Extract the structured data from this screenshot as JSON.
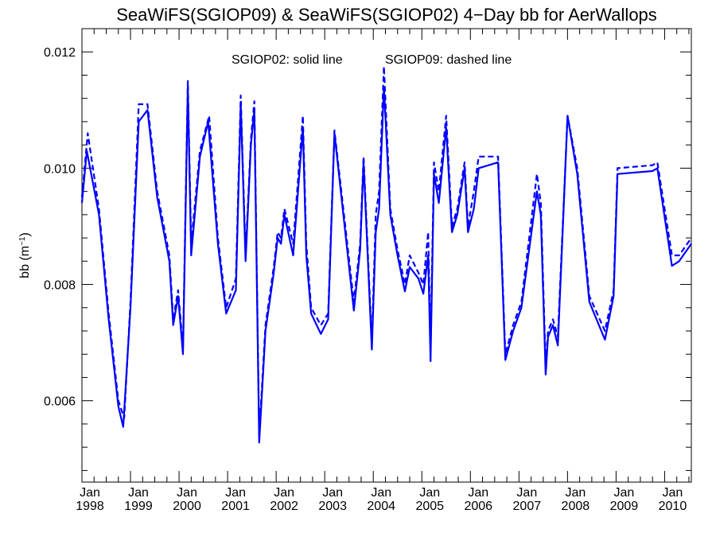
{
  "chart_data": {
    "type": "line",
    "title": "SeaWiFS(SGIOP09) & SeaWiFS(SGIOP02) 4−Day bb for AerWallops",
    "annotations": [
      "SGIOP02: solid line",
      "SGIOP09: dashed line"
    ],
    "ylabel": "bb (m",
    "ylabel_sup": "−1",
    "ylabel_close": ")",
    "xlabel": "",
    "xlim": [
      1998.0,
      2010.55
    ],
    "ylim": [
      0.0046,
      0.0124
    ],
    "yticks": [
      "0.006",
      "0.008",
      "0.010",
      "0.012"
    ],
    "ytick_values": [
      0.006,
      0.008,
      0.01,
      0.012
    ],
    "xticks": [
      {
        "month": "Jan",
        "year": "1998",
        "value": 1998.0
      },
      {
        "month": "Jan",
        "year": "1999",
        "value": 1999.0
      },
      {
        "month": "Jan",
        "year": "2000",
        "value": 2000.0
      },
      {
        "month": "Jan",
        "year": "2001",
        "value": 2001.0
      },
      {
        "month": "Jan",
        "year": "2002",
        "value": 2002.0
      },
      {
        "month": "Jan",
        "year": "2003",
        "value": 2003.0
      },
      {
        "month": "Jan",
        "year": "2004",
        "value": 2004.0
      },
      {
        "month": "Jan",
        "year": "2005",
        "value": 2005.0
      },
      {
        "month": "Jan",
        "year": "2006",
        "value": 2006.0
      },
      {
        "month": "Jan",
        "year": "2007",
        "value": 2007.0
      },
      {
        "month": "Jan",
        "year": "2008",
        "value": 2008.0
      },
      {
        "month": "Jan",
        "year": "2009",
        "value": 2009.0
      },
      {
        "month": "Jan",
        "year": "2010",
        "value": 2010.0
      }
    ],
    "color": "#0000ff",
    "series": [
      {
        "style": "solid",
        "x": [
          1998.0,
          1998.1,
          1998.35,
          1998.55,
          1998.75,
          1998.85,
          1999.0,
          1999.17,
          1999.35,
          1999.55,
          1999.8,
          1999.88,
          1999.98,
          2000.08,
          2000.18,
          2000.25,
          2000.43,
          2000.6,
          2000.8,
          2000.97,
          2001.17,
          2001.27,
          2001.37,
          2001.48,
          2001.55,
          2001.65,
          2001.78,
          2001.95,
          2002.03,
          2002.1,
          2002.17,
          2002.35,
          2002.55,
          2002.62,
          2002.72,
          2002.92,
          2003.07,
          2003.2,
          2003.6,
          2003.73,
          2003.8,
          2003.97,
          2004.05,
          2004.12,
          2004.22,
          2004.35,
          2004.5,
          2004.65,
          2004.75,
          2004.93,
          2005.03,
          2005.13,
          2005.18,
          2005.25,
          2005.35,
          2005.5,
          2005.62,
          2005.73,
          2005.88,
          2005.95,
          2006.07,
          2006.17,
          2006.57,
          2006.72,
          2006.88,
          2007.05,
          2007.37,
          2007.45,
          2007.55,
          2007.6,
          2007.7,
          2007.8,
          2008.0,
          2008.2,
          2008.45,
          2008.77,
          2008.95,
          2009.03,
          2009.75,
          2009.85,
          2010.15,
          2010.3,
          2010.55
        ],
        "y": [
          0.0094,
          0.0103,
          0.0092,
          0.0074,
          0.0059,
          0.00555,
          0.0076,
          0.0108,
          0.011,
          0.0095,
          0.0084,
          0.0073,
          0.0078,
          0.0068,
          0.0114,
          0.0085,
          0.0102,
          0.0108,
          0.0087,
          0.0075,
          0.0079,
          0.0111,
          0.0084,
          0.0104,
          0.011,
          0.00528,
          0.0072,
          0.0082,
          0.0088,
          0.0087,
          0.0092,
          0.0085,
          0.0107,
          0.0085,
          0.0075,
          0.00715,
          0.0074,
          0.0106,
          0.00755,
          0.0086,
          0.0101,
          0.00688,
          0.0089,
          0.0093,
          0.0114,
          0.0092,
          0.0085,
          0.00788,
          0.0083,
          0.0081,
          0.00784,
          0.0085,
          0.00668,
          0.0099,
          0.0094,
          0.0107,
          0.0089,
          0.0092,
          0.01,
          0.0089,
          0.0093,
          0.01,
          0.0101,
          0.0067,
          0.0072,
          0.0076,
          0.0096,
          0.0092,
          0.00645,
          0.0071,
          0.0073,
          0.00695,
          0.0109,
          0.0099,
          0.0077,
          0.00705,
          0.0078,
          0.0099,
          0.00995,
          0.01,
          0.00832,
          0.0084,
          0.0087
        ]
      },
      {
        "style": "dashed",
        "x": [
          1998.0,
          1998.12,
          1998.35,
          1998.55,
          1998.75,
          1998.87,
          1999.0,
          1999.17,
          1999.35,
          1999.55,
          1999.8,
          1999.88,
          1999.98,
          2000.08,
          2000.18,
          2000.25,
          2000.43,
          2000.62,
          2000.8,
          2000.97,
          2001.17,
          2001.27,
          2001.37,
          2001.48,
          2001.55,
          2001.65,
          2001.78,
          2001.95,
          2002.03,
          2002.1,
          2002.17,
          2002.35,
          2002.55,
          2002.62,
          2002.72,
          2002.92,
          2003.07,
          2003.2,
          2003.6,
          2003.73,
          2003.8,
          2003.97,
          2004.05,
          2004.12,
          2004.22,
          2004.35,
          2004.5,
          2004.65,
          2004.75,
          2004.93,
          2005.03,
          2005.13,
          2005.18,
          2005.25,
          2005.35,
          2005.5,
          2005.62,
          2005.73,
          2005.88,
          2005.95,
          2006.07,
          2006.17,
          2006.57,
          2006.72,
          2006.88,
          2007.05,
          2007.37,
          2007.45,
          2007.55,
          2007.6,
          2007.7,
          2007.8,
          2008.0,
          2008.2,
          2008.45,
          2008.77,
          2008.95,
          2009.03,
          2009.75,
          2009.85,
          2010.15,
          2010.3,
          2010.55
        ],
        "y": [
          0.0095,
          0.0106,
          0.0093,
          0.0075,
          0.006,
          0.0057,
          0.0077,
          0.0111,
          0.0111,
          0.0096,
          0.0085,
          0.0074,
          0.0079,
          0.0069,
          0.0115,
          0.0087,
          0.0103,
          0.0109,
          0.0088,
          0.0076,
          0.0081,
          0.01125,
          0.0085,
          0.0105,
          0.01115,
          0.0054,
          0.0073,
          0.0083,
          0.0089,
          0.0088,
          0.0093,
          0.0087,
          0.0109,
          0.0087,
          0.0076,
          0.0073,
          0.0075,
          0.01065,
          0.0077,
          0.0087,
          0.0102,
          0.007,
          0.0092,
          0.0096,
          0.01175,
          0.0093,
          0.0086,
          0.008,
          0.0085,
          0.0082,
          0.008,
          0.0089,
          0.0069,
          0.0101,
          0.0096,
          0.0109,
          0.009,
          0.0093,
          0.0101,
          0.009,
          0.0096,
          0.0102,
          0.0102,
          0.0068,
          0.0073,
          0.0077,
          0.0099,
          0.0094,
          0.0066,
          0.0072,
          0.0074,
          0.0071,
          0.0109,
          0.01,
          0.0078,
          0.0072,
          0.0079,
          0.01,
          0.01005,
          0.0101,
          0.0085,
          0.0085,
          0.0088
        ]
      }
    ]
  }
}
